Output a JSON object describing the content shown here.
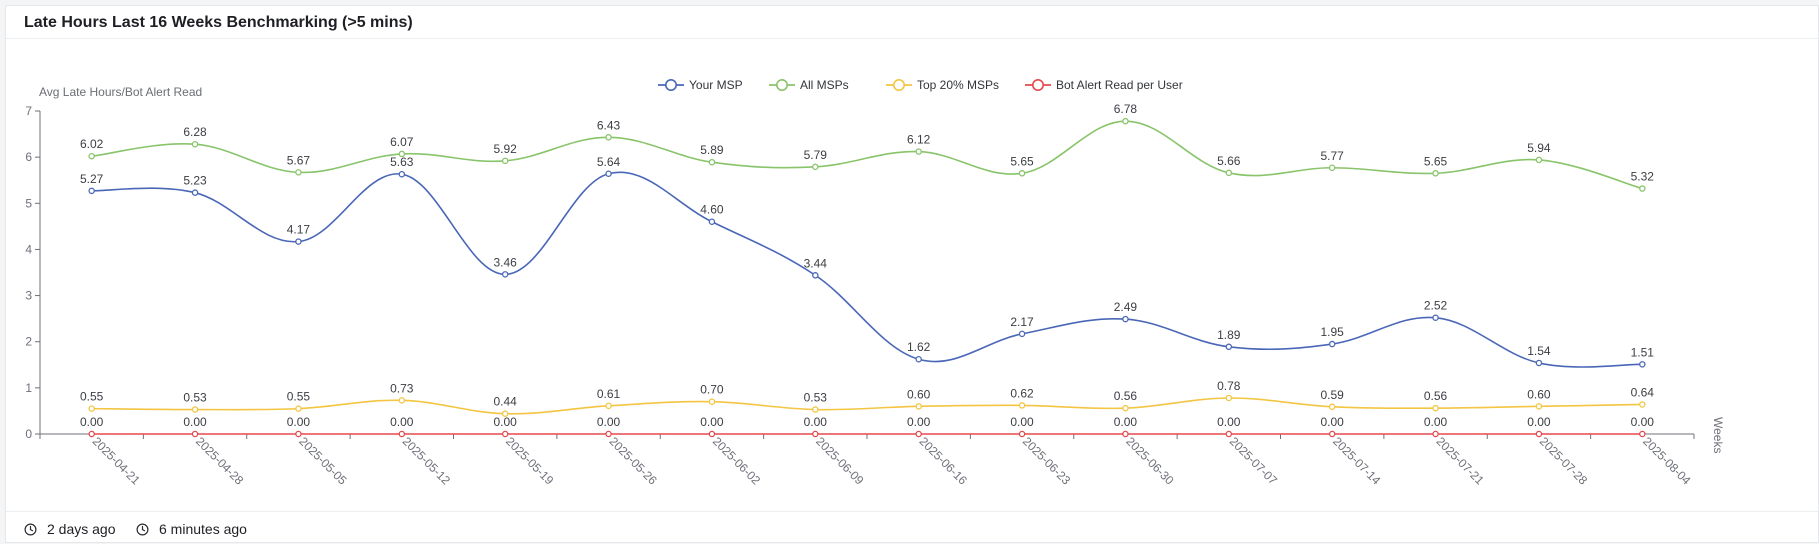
{
  "card": {
    "title": "Late Hours Last 16 Weeks Benchmarking (>5 mins)"
  },
  "footer": {
    "items": [
      {
        "icon": "clock-icon",
        "text": "2 days ago"
      },
      {
        "icon": "clock-icon",
        "text": "6 minutes ago"
      }
    ]
  },
  "chart_data": {
    "type": "line",
    "ylabel": "Avg Late Hours/Bot Alert Read",
    "xlabel": "Weeks",
    "ylim": [
      0,
      7
    ],
    "yticks": [
      0,
      1,
      2,
      3,
      4,
      5,
      6,
      7
    ],
    "grid": false,
    "legend_position": "top-center",
    "smooth": true,
    "data_labels": true,
    "x": [
      "2025-04-21",
      "2025-04-28",
      "2025-05-05",
      "2025-05-12",
      "2025-05-19",
      "2025-05-26",
      "2025-06-02",
      "2025-06-09",
      "2025-06-16",
      "2025-06-23",
      "2025-06-30",
      "2025-07-07",
      "2025-07-14",
      "2025-07-21",
      "2025-07-28",
      "2025-08-04"
    ],
    "series": [
      {
        "name": "Your MSP",
        "color": "#4a67b7",
        "values": [
          5.27,
          5.23,
          4.17,
          5.63,
          3.46,
          5.64,
          4.6,
          3.44,
          1.62,
          2.17,
          2.49,
          1.89,
          1.95,
          2.52,
          1.54,
          1.51
        ],
        "labels": [
          "5.27",
          "5.23",
          "4.17",
          "5.63",
          "3.46",
          "5.64",
          "4.60",
          "3.44",
          "1.62",
          "2.17",
          "2.49",
          "1.89",
          "1.95",
          "2.52",
          "1.54",
          "1.51"
        ]
      },
      {
        "name": "All MSPs",
        "color": "#88c46a",
        "values": [
          6.02,
          6.28,
          5.67,
          6.07,
          5.92,
          6.43,
          5.89,
          5.79,
          6.12,
          5.65,
          6.78,
          5.66,
          5.77,
          5.65,
          5.94,
          5.32
        ],
        "labels": [
          "6.02",
          "6.28",
          "5.67",
          "6.07",
          "5.92",
          "6.43",
          "5.89",
          "5.79",
          "6.12",
          "5.65",
          "6.78",
          "5.66",
          "5.77",
          "5.65",
          "5.94",
          "5.32"
        ]
      },
      {
        "name": "Top 20% MSPs",
        "color": "#f3c542",
        "values": [
          0.55,
          0.53,
          0.55,
          0.73,
          0.44,
          0.61,
          0.7,
          0.53,
          0.6,
          0.62,
          0.56,
          0.78,
          0.59,
          0.56,
          0.6,
          0.64
        ],
        "labels": [
          "0.55",
          "0.53",
          "0.55",
          "0.73",
          "0.44",
          "0.61",
          "0.70",
          "0.53",
          "0.60",
          "0.62",
          "0.56",
          "0.78",
          "0.59",
          "0.56",
          "0.60",
          "0.64"
        ]
      },
      {
        "name": "Bot Alert Read per User",
        "color": "#e5484d",
        "values": [
          0,
          0,
          0,
          0,
          0,
          0,
          0,
          0,
          0,
          0,
          0,
          0,
          0,
          0,
          0,
          0
        ],
        "labels": [
          "0.00",
          "0.00",
          "0.00",
          "0.00",
          "0.00",
          "0.00",
          "0.00",
          "0.00",
          "0.00",
          "0.00",
          "0.00",
          "0.00",
          "0.00",
          "0.00",
          "0.00",
          "0.00"
        ]
      }
    ]
  }
}
